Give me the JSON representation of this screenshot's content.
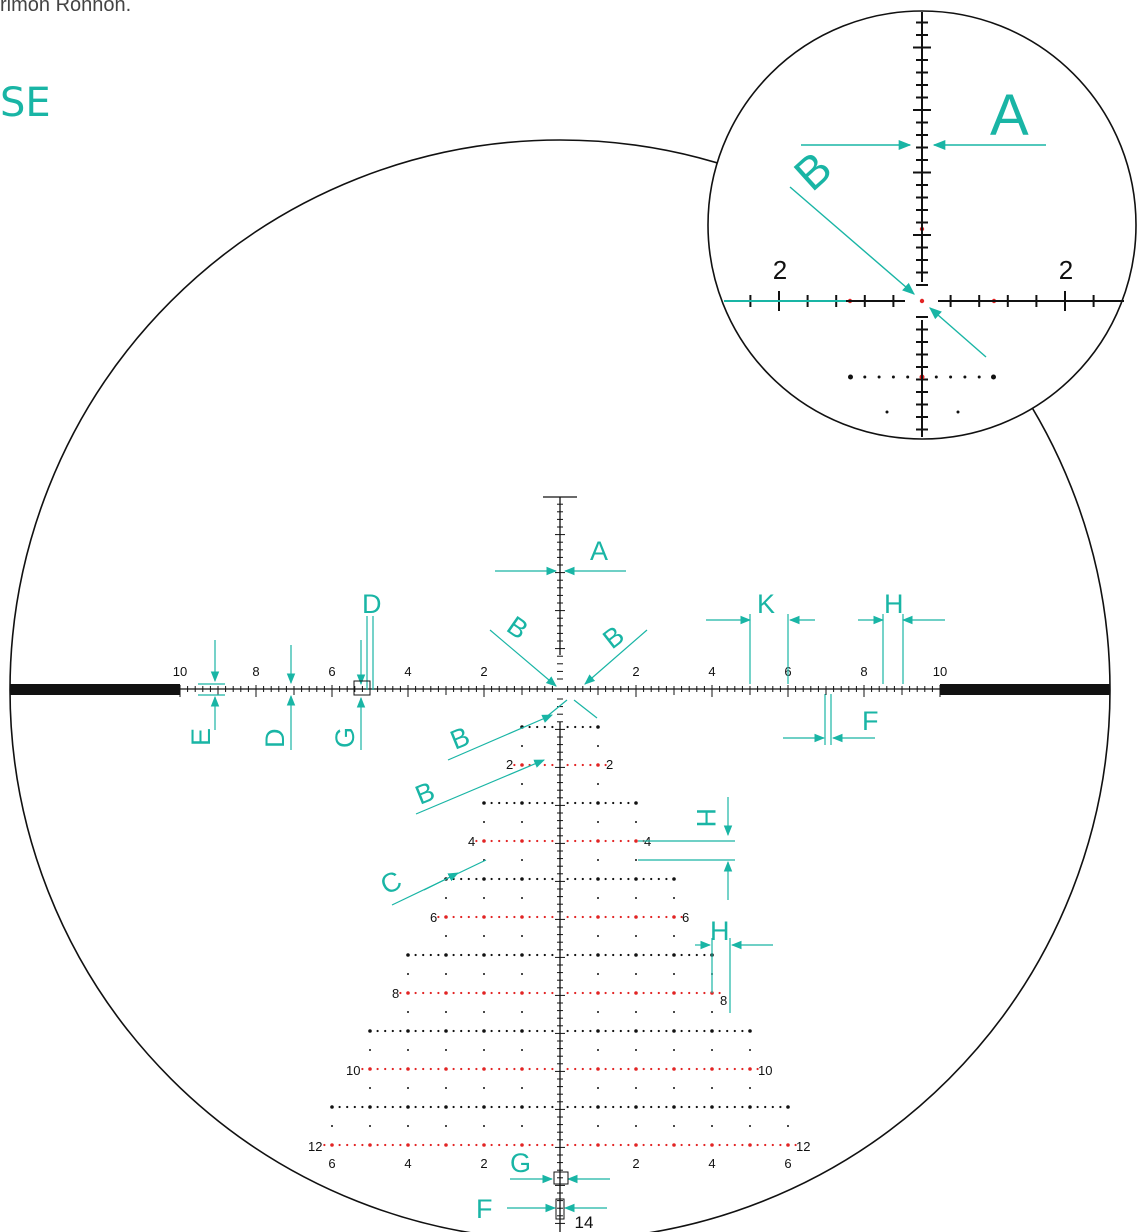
{
  "header": {
    "top_fragment": "rimon Ronnon.",
    "heading_fragment": "SE"
  },
  "colors": {
    "accent": "#19b5a5",
    "ink": "#111111",
    "holdover_red": "#e22424"
  },
  "reticle": {
    "windage_labels": [
      "10",
      "8",
      "6",
      "4",
      "2",
      "2",
      "4",
      "6",
      "8",
      "10"
    ],
    "holdover_rows": [
      {
        "value": "2",
        "red": true
      },
      {
        "value": "4",
        "red": true
      },
      {
        "value": "6",
        "red": true
      },
      {
        "value": "8",
        "red": true
      },
      {
        "value": "10",
        "red": true
      },
      {
        "value": "12",
        "red": true
      }
    ],
    "bottom_scale_labels": [
      "6",
      "4",
      "2",
      "2",
      "4",
      "6"
    ],
    "bottom_value": "14"
  },
  "callouts": {
    "a": "A",
    "b": "B",
    "c": "C",
    "d": "D",
    "e": "E",
    "f": "F",
    "g": "G",
    "h": "H",
    "k": "K"
  },
  "inset": {
    "callout_a": "A",
    "callout_b": "B",
    "left_label": "2",
    "right_label": "2"
  }
}
